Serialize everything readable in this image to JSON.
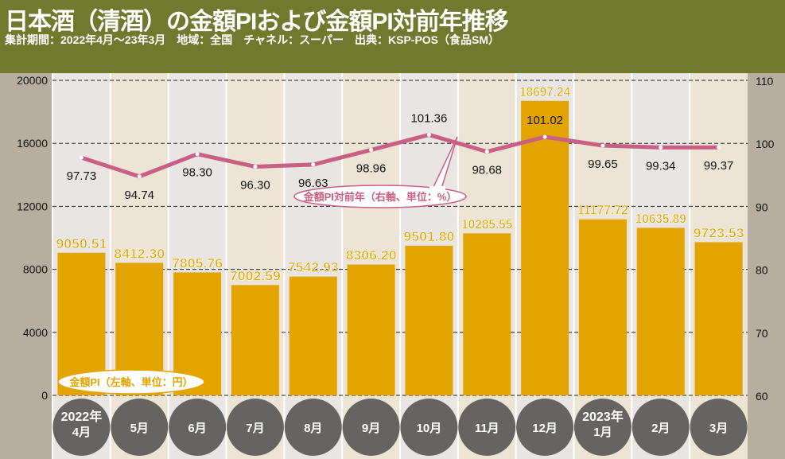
{
  "header": {
    "title": "日本酒（清酒）の金額PIおよび金額PI対前年推移",
    "subtitle": "集計期間：2022年4月〜23年3月　地域：全国　チャネル：スーパー　出典：KSP-POS（食品SM）"
  },
  "chart_data": {
    "type": "bar+line",
    "categories": [
      [
        "2022年",
        "4月"
      ],
      [
        "5月"
      ],
      [
        "6月"
      ],
      [
        "7月"
      ],
      [
        "8月"
      ],
      [
        "9月"
      ],
      [
        "10月"
      ],
      [
        "11月"
      ],
      [
        "12月"
      ],
      [
        "2023年",
        "1月"
      ],
      [
        "2月"
      ],
      [
        "3月"
      ]
    ],
    "series": [
      {
        "name": "金額PI（左軸、単位：円）",
        "type": "bar",
        "axis": "left",
        "color": "#e3a400",
        "values": [
          9050.51,
          8412.3,
          7805.76,
          7002.59,
          7542.93,
          8306.2,
          9501.8,
          10285.55,
          18697.24,
          11177.72,
          10635.89,
          9723.53
        ],
        "labels": [
          "9050.51",
          "8412.30",
          "7805.76",
          "7002.59",
          "7542.93",
          "8306.20",
          "9501.80",
          "10285.55",
          "18697.24",
          "11177.72",
          "10635.89",
          "9723.53"
        ]
      },
      {
        "name": "金額PI対前年（右軸、単位：%）",
        "type": "line",
        "axis": "right",
        "color": "#c95f84",
        "values": [
          97.73,
          94.74,
          98.3,
          96.3,
          96.63,
          98.96,
          101.36,
          98.68,
          101.02,
          99.65,
          99.34,
          99.37
        ],
        "labels": [
          "97.73",
          "94.74",
          "98.30",
          "96.30",
          "96.63",
          "98.96",
          "101.36",
          "98.68",
          "101.02",
          "99.65",
          "99.34",
          "99.37"
        ]
      }
    ],
    "left_axis": {
      "ylim": [
        0,
        20000
      ],
      "ticks": [
        "0",
        "4000",
        "8000",
        "12000",
        "16000",
        "20000"
      ]
    },
    "right_axis": {
      "ylim": [
        60,
        110
      ],
      "ticks": [
        "60",
        "70",
        "80",
        "90",
        "100",
        "110"
      ]
    },
    "grid": "dashed horizontal"
  }
}
